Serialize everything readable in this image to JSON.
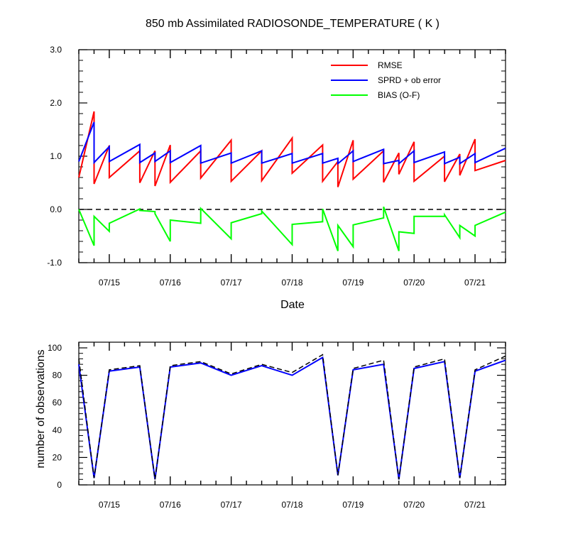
{
  "colors": {
    "rmse": "#ff0000",
    "sprd": "#0000ff",
    "bias": "#00ff00",
    "zero": "#000000"
  },
  "chart_data": [
    {
      "type": "line",
      "title": "850 mb Assimilated RADIOSONDE_TEMPERATURE ( K )",
      "xlabel": "Date",
      "ylabel": "",
      "ylim": [
        -1.0,
        3.0
      ],
      "xlim": [
        "07/14 12Z",
        "07/21 12Z"
      ],
      "yticks": [
        "-1.0",
        "0.0",
        "1.0",
        "2.0",
        "3.0"
      ],
      "ytick_values": [
        -1,
        0,
        1,
        2,
        3
      ],
      "xticks": [
        "07/15",
        "07/16",
        "07/17",
        "07/18",
        "07/19",
        "07/20",
        "07/21"
      ],
      "xtick_values": [
        1,
        2,
        3,
        4,
        5,
        6,
        7
      ],
      "x_units": "days after 07/14 00Z",
      "legend_position": "top-right",
      "reference_line": {
        "y": 0.0,
        "style": "dashed"
      },
      "series": [
        {
          "name": "RMSE",
          "color_key": "rmse",
          "segments": [
            [
              [
                0.5,
                0.6
              ],
              [
                0.75,
                1.84
              ],
              [
                0.75,
                0.48
              ],
              [
                1.0,
                1.2
              ],
              [
                1.0,
                0.6
              ],
              [
                1.5,
                1.1
              ],
              [
                1.5,
                0.5
              ],
              [
                1.75,
                1.1
              ],
              [
                1.75,
                0.44
              ],
              [
                2.0,
                1.21
              ],
              [
                2.0,
                0.51
              ],
              [
                2.5,
                1.1
              ],
              [
                2.5,
                0.59
              ],
              [
                3.0,
                1.3
              ],
              [
                3.0,
                0.53
              ],
              [
                3.5,
                1.1
              ],
              [
                3.5,
                0.54
              ],
              [
                4.0,
                1.34
              ],
              [
                4.0,
                0.68
              ],
              [
                4.5,
                1.21
              ],
              [
                4.5,
                0.53
              ],
              [
                4.75,
                0.9
              ],
              [
                4.75,
                0.42
              ],
              [
                5.0,
                1.3
              ],
              [
                5.0,
                0.57
              ],
              [
                5.5,
                1.1
              ],
              [
                5.5,
                0.51
              ],
              [
                5.75,
                1.06
              ],
              [
                5.75,
                0.66
              ],
              [
                6.0,
                1.27
              ],
              [
                6.0,
                0.53
              ],
              [
                6.5,
                1.0
              ],
              [
                6.5,
                0.52
              ],
              [
                6.75,
                1.04
              ],
              [
                6.75,
                0.64
              ],
              [
                7.0,
                1.32
              ],
              [
                7.0,
                0.73
              ],
              [
                7.5,
                0.92
              ]
            ]
          ]
        },
        {
          "name": "SPRD + ob error",
          "color_key": "sprd",
          "segments": [
            [
              [
                0.5,
                0.9
              ],
              [
                0.75,
                1.64
              ],
              [
                0.75,
                0.88
              ],
              [
                1.0,
                1.18
              ],
              [
                1.0,
                0.9
              ],
              [
                1.5,
                1.22
              ],
              [
                1.5,
                0.88
              ],
              [
                1.75,
                1.06
              ],
              [
                1.75,
                0.9
              ],
              [
                2.0,
                1.1
              ],
              [
                2.0,
                0.88
              ],
              [
                2.5,
                1.2
              ],
              [
                2.5,
                0.87
              ],
              [
                3.0,
                1.06
              ],
              [
                3.0,
                0.87
              ],
              [
                3.5,
                1.1
              ],
              [
                3.5,
                0.87
              ],
              [
                4.0,
                1.05
              ],
              [
                4.0,
                0.87
              ],
              [
                4.5,
                1.05
              ],
              [
                4.5,
                0.87
              ],
              [
                4.75,
                0.96
              ],
              [
                4.75,
                0.86
              ],
              [
                5.0,
                1.1
              ],
              [
                5.0,
                0.9
              ],
              [
                5.5,
                1.13
              ],
              [
                5.5,
                0.86
              ],
              [
                5.75,
                0.92
              ],
              [
                5.75,
                0.86
              ],
              [
                6.0,
                1.1
              ],
              [
                6.0,
                0.88
              ],
              [
                6.5,
                1.08
              ],
              [
                6.5,
                0.86
              ],
              [
                6.75,
                0.98
              ],
              [
                6.75,
                0.86
              ],
              [
                7.0,
                1.05
              ],
              [
                7.0,
                0.88
              ],
              [
                7.5,
                1.15
              ]
            ]
          ]
        },
        {
          "name": "BIAS (O-F)",
          "color_key": "bias",
          "segments": [
            [
              [
                0.5,
                0.0
              ],
              [
                0.75,
                -0.68
              ],
              [
                0.75,
                -0.13
              ],
              [
                1.0,
                -0.41
              ],
              [
                1.0,
                -0.26
              ],
              [
                1.5,
                0.01
              ],
              [
                1.5,
                -0.02
              ],
              [
                1.75,
                -0.04
              ],
              [
                1.75,
                -0.08
              ],
              [
                2.0,
                -0.6
              ],
              [
                2.0,
                -0.2
              ],
              [
                2.5,
                -0.26
              ],
              [
                2.5,
                0.02
              ],
              [
                3.0,
                -0.55
              ],
              [
                3.0,
                -0.25
              ],
              [
                3.5,
                -0.08
              ],
              [
                3.5,
                -0.03
              ],
              [
                4.0,
                -0.66
              ],
              [
                4.0,
                -0.28
              ],
              [
                4.5,
                -0.23
              ],
              [
                4.5,
                0.01
              ],
              [
                4.75,
                -0.78
              ],
              [
                4.75,
                -0.3
              ],
              [
                5.0,
                -0.7
              ],
              [
                5.0,
                -0.29
              ],
              [
                5.5,
                -0.16
              ],
              [
                5.5,
                0.05
              ],
              [
                5.75,
                -0.78
              ],
              [
                5.75,
                -0.42
              ],
              [
                6.0,
                -0.45
              ],
              [
                6.0,
                -0.13
              ],
              [
                6.5,
                -0.13
              ],
              [
                6.5,
                -0.1
              ],
              [
                6.75,
                -0.53
              ],
              [
                6.75,
                -0.3
              ],
              [
                7.0,
                -0.5
              ],
              [
                7.0,
                -0.3
              ],
              [
                7.5,
                -0.05
              ]
            ]
          ]
        }
      ]
    },
    {
      "type": "line",
      "title": "",
      "xlabel": "",
      "ylabel": "number of observations",
      "ylim": [
        0,
        100
      ],
      "xlim": [
        "07/14 12Z",
        "07/21 12Z"
      ],
      "yticks": [
        "0",
        "20",
        "40",
        "60",
        "80",
        "100"
      ],
      "ytick_values": [
        0,
        20,
        40,
        60,
        80,
        100
      ],
      "xticks": [
        "07/15",
        "07/16",
        "07/17",
        "07/18",
        "07/19",
        "07/20",
        "07/21"
      ],
      "xtick_values": [
        1,
        2,
        3,
        4,
        5,
        6,
        7
      ],
      "x_units": "days after 07/14 00Z",
      "series": [
        {
          "color_key": "sprd",
          "style": "solid",
          "points": [
            [
              0.5,
              88
            ],
            [
              0.75,
              5
            ],
            [
              1.0,
              83
            ],
            [
              1.5,
              86
            ],
            [
              1.75,
              4
            ],
            [
              2.0,
              86
            ],
            [
              2.5,
              89
            ],
            [
              3.0,
              80
            ],
            [
              3.5,
              87
            ],
            [
              4.0,
              80
            ],
            [
              4.5,
              93
            ],
            [
              4.75,
              7
            ],
            [
              5.0,
              84
            ],
            [
              5.5,
              88
            ],
            [
              5.75,
              4
            ],
            [
              6.0,
              85
            ],
            [
              6.5,
              90
            ],
            [
              6.75,
              5
            ],
            [
              7.0,
              83
            ],
            [
              7.5,
              91
            ]
          ]
        },
        {
          "color_key": "zero",
          "style": "dashed",
          "points": [
            [
              0.5,
              92
            ],
            [
              0.75,
              5
            ],
            [
              1.0,
              84
            ],
            [
              1.5,
              87
            ],
            [
              1.75,
              4
            ],
            [
              2.0,
              87
            ],
            [
              2.5,
              90
            ],
            [
              3.0,
              81
            ],
            [
              3.5,
              88
            ],
            [
              4.0,
              82
            ],
            [
              4.5,
              95
            ],
            [
              4.75,
              7
            ],
            [
              5.0,
              85
            ],
            [
              5.5,
              91
            ],
            [
              5.75,
              4
            ],
            [
              6.0,
              86
            ],
            [
              6.5,
              92
            ],
            [
              6.75,
              5
            ],
            [
              7.0,
              84
            ],
            [
              7.5,
              94
            ]
          ]
        }
      ]
    }
  ]
}
